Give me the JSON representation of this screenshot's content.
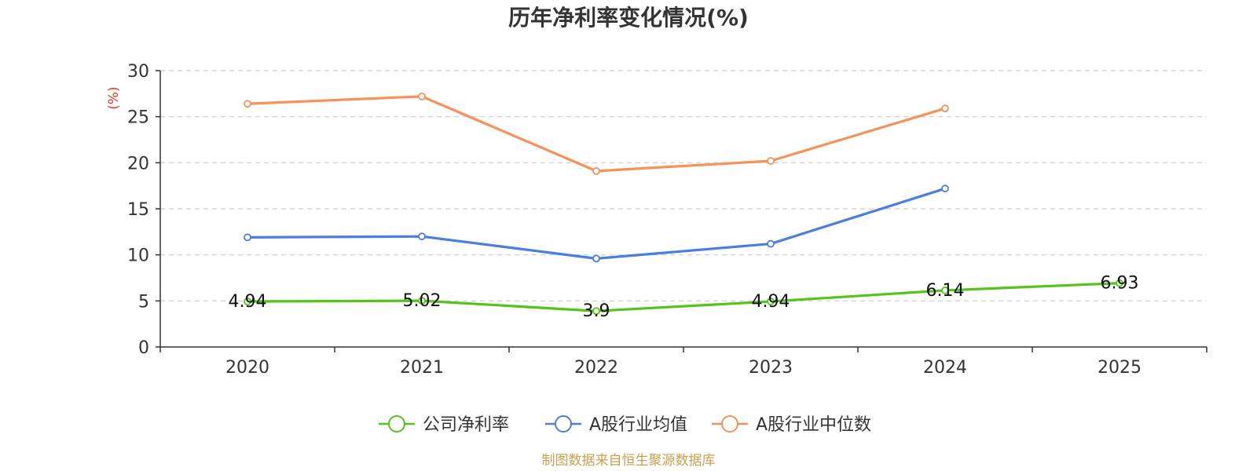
{
  "chart_data": {
    "type": "line",
    "title": "历年净利率变化情况(%)",
    "ylabel": "(%)",
    "xlabel": "",
    "categories": [
      "2020",
      "2021",
      "2022",
      "2023",
      "2024",
      "2025"
    ],
    "ylim": [
      0,
      30
    ],
    "yticks": [
      0,
      5,
      10,
      15,
      20,
      25,
      30
    ],
    "grid": true,
    "legend_position": "bottom-center",
    "series": [
      {
        "name": "公司净利率",
        "color": "#52c41a",
        "values": [
          4.94,
          5.02,
          3.9,
          4.94,
          6.14,
          6.93
        ],
        "labels": [
          "4.94",
          "5.02",
          "3.9",
          "4.94",
          "6.14",
          "6.93"
        ]
      },
      {
        "name": "A股行业均值",
        "color": "#4a7ee0",
        "values": [
          11.9,
          12.0,
          9.6,
          11.2,
          17.2,
          null
        ]
      },
      {
        "name": "A股行业中位数",
        "color": "#f79059",
        "values": [
          26.4,
          27.2,
          19.1,
          20.2,
          25.9,
          null
        ]
      }
    ],
    "source": "制图数据来自恒生聚源数据库"
  }
}
